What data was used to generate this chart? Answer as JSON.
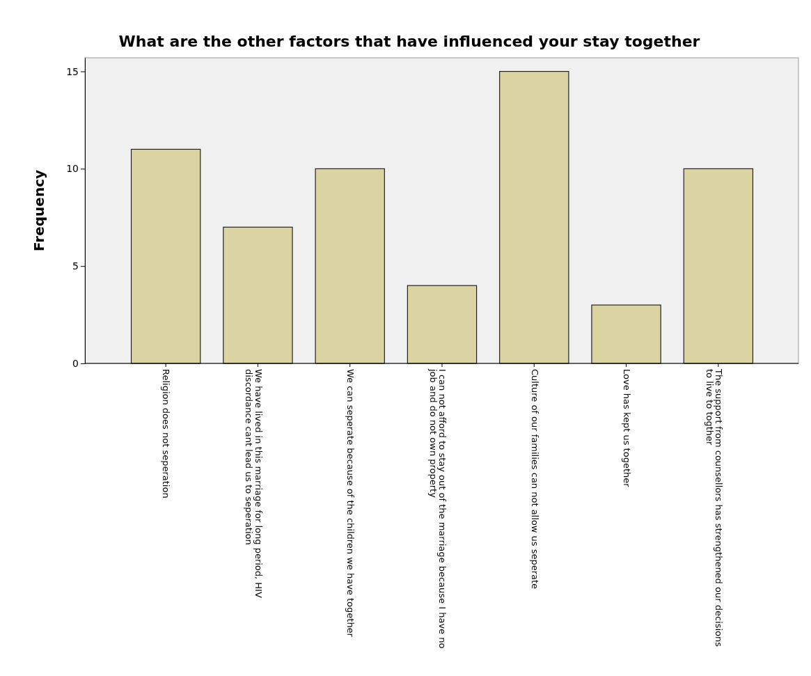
{
  "chart_data": {
    "type": "bar",
    "title": "What are the other factors that have influenced your stay together",
    "ylabel": "Frequency",
    "categories": [
      "Religion does not seperation",
      "We have lived in this marriage for long period, HIV discordance cant lead us to seperation",
      "We can seperate because of the children we have together",
      "I can not afford to stay out of the marriage because I have no job and do not own property",
      "Culture of our families can not allow us seperate",
      "Love has kept us together",
      "The support from counsellors has strengthened our decisions to live to togther"
    ],
    "values": [
      11,
      7,
      10,
      4,
      15,
      3,
      10
    ],
    "color": "#dcd3a3",
    "ylim": [
      0,
      15.7
    ],
    "yticks": [
      0,
      5,
      10,
      15
    ]
  }
}
